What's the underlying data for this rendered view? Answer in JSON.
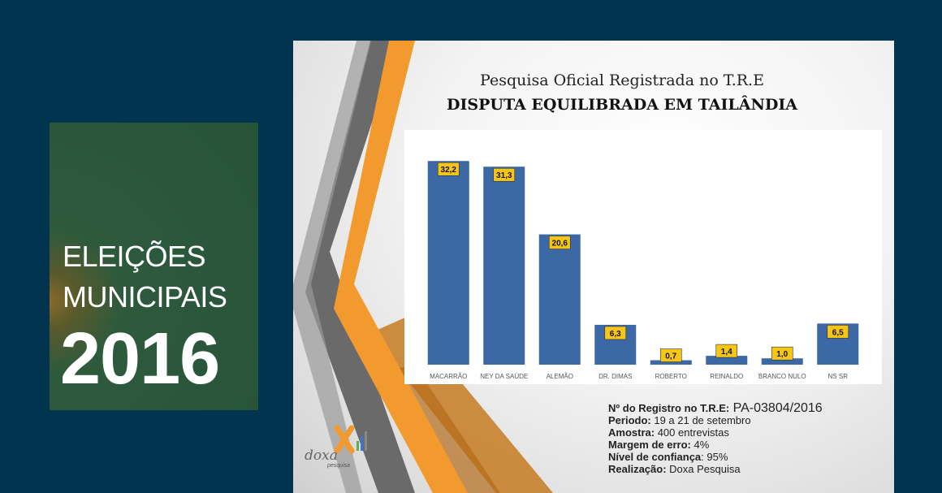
{
  "badge": {
    "line1": "ELEIÇÕES",
    "line2": "MUNICIPAIS",
    "year": "2016"
  },
  "slide": {
    "title": "Pesquisa Oficial Registrada no T.R.E",
    "subtitle": "DISPUTA EQUILIBRADA EM TAILÂNDIA"
  },
  "chart_data": {
    "type": "bar",
    "categories": [
      "MACARRÃO",
      "NEY DA SAÚDE",
      "ALEMÃO",
      "DR. DIMAS",
      "ROBERTO",
      "REINALDO",
      "BRANCO NULO",
      "NS SR"
    ],
    "values": [
      32.2,
      31.3,
      20.6,
      6.3,
      0.7,
      1.4,
      1.0,
      6.5
    ],
    "labels": [
      "32,2",
      "31,3",
      "20,6",
      "6,3",
      "0,7",
      "1,4",
      "1,0",
      "6,5"
    ],
    "ylim": [
      0,
      33
    ],
    "grid": false,
    "bar_color": "#3c68a6",
    "label_bg": "#f5c518"
  },
  "footer": {
    "registro_label": "Nº do Registro no T.R.E:",
    "registro_value": " PA-03804/2016",
    "periodo_label": "Periodo:",
    "periodo_value": " 19 a 21 de setembro",
    "amostra_label": "Amostra:",
    "amostra_value": " 400 entrevistas",
    "margem_label": "Margem de erro:",
    "margem_value": " 4%",
    "nivel_label": "Nível de confiança",
    "nivel_value": ": 95%",
    "realizacao_label": "Realização:",
    "realizacao_value": " Doxa Pesquisa"
  },
  "logo": {
    "name": "doxa",
    "sub": "pesquisa"
  },
  "colors": {
    "background": "#03344f",
    "badge_green": "#2a573b",
    "stripe_gray": "#6b6b6b",
    "stripe_orange": "#f29a2e"
  }
}
